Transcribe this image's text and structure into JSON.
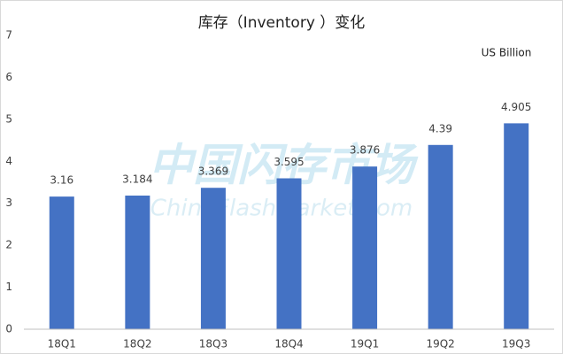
{
  "chart_data": {
    "type": "bar",
    "title": "库存（Inventory ）变化",
    "annotation": "US Billion",
    "watermark": "中国闪存市场",
    "watermark_sub": "ChinaFlashMarket.com",
    "categories": [
      "18Q1",
      "18Q2",
      "18Q3",
      "18Q4",
      "19Q1",
      "19Q2",
      "19Q3"
    ],
    "values": [
      3.16,
      3.184,
      3.369,
      3.595,
      3.876,
      4.39,
      4.905
    ],
    "color": "#4472c4",
    "ylim": [
      0,
      7
    ],
    "yticks": [
      0,
      1,
      2,
      3,
      4,
      5,
      6,
      7
    ],
    "grid": false
  }
}
